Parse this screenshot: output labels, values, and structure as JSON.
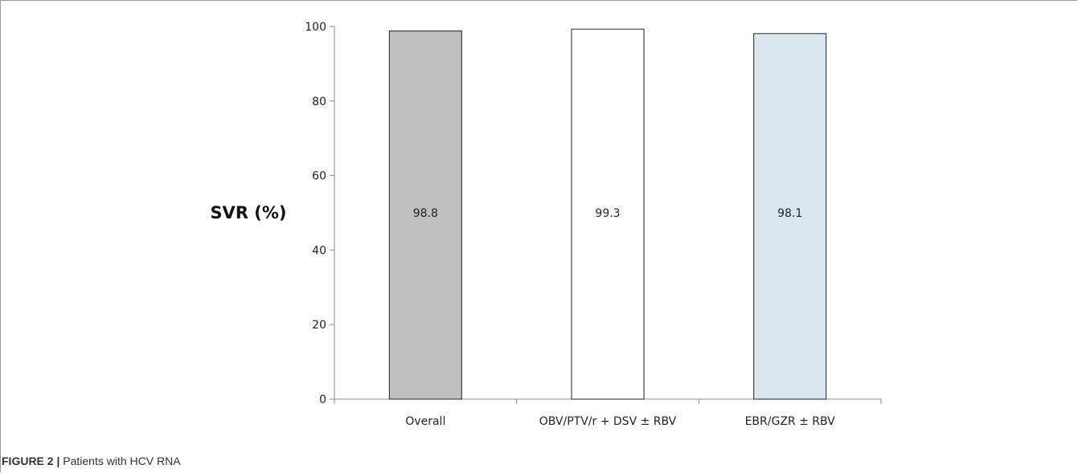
{
  "chart_data": {
    "type": "bar",
    "categories": [
      "Overall",
      "OBV/PTV/r + DSV ± RBV",
      "EBR/GZR ± RBV"
    ],
    "values": [
      98.8,
      99.3,
      98.1
    ],
    "data_labels": [
      "98.8",
      "99.3",
      "98.1"
    ],
    "colors": [
      "#bfbfbf",
      "#ffffff",
      "#dae6f0"
    ],
    "title": "",
    "xlabel": "",
    "ylabel": "SVR (%)",
    "ylim": [
      0,
      100
    ],
    "yticks": [
      "0",
      "20",
      "40",
      "60",
      "80",
      "100"
    ],
    "grid": false,
    "legend": "none"
  },
  "caption": {
    "figure_label": "FIGURE 2 |",
    "text": " Patients with HCV RNA"
  }
}
